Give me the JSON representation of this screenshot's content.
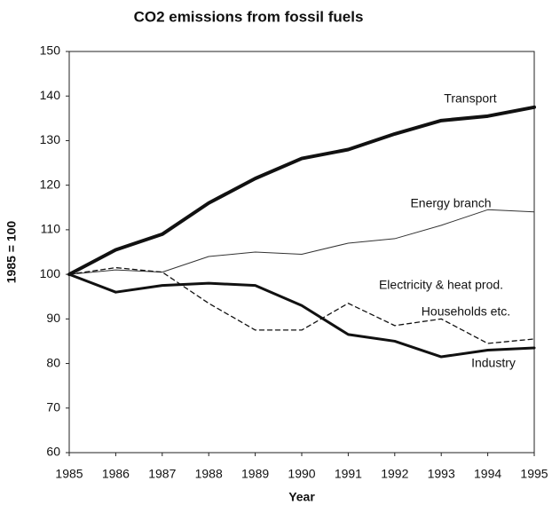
{
  "chart_data": {
    "type": "line",
    "title": "CO2 emissions from fossil fuels",
    "x_label": "Year",
    "y_label": "1985 = 100",
    "categories": [
      "1985",
      "1986",
      "1987",
      "1988",
      "1989",
      "1990",
      "1991",
      "1992",
      "1993",
      "1994",
      "1995"
    ],
    "series": [
      {
        "name": "Transport",
        "color": "#111111",
        "line_width": 4,
        "dashed": false,
        "values": [
          100,
          105.5,
          109,
          116,
          121.5,
          126,
          128,
          131.5,
          134.5,
          135.5,
          137.5
        ]
      },
      {
        "name": "Energy branch",
        "color": "#333333",
        "line_width": 1,
        "dashed": false,
        "values": [
          100,
          101,
          100.5,
          104,
          105,
          104.5,
          107,
          108,
          111,
          114.5,
          114
        ]
      },
      {
        "name": "Households etc.",
        "color": "#111111",
        "line_width": 1.3,
        "dashed": true,
        "values": [
          100,
          101.5,
          100.5,
          93.5,
          87.5,
          87.5,
          93.5,
          88.5,
          90,
          84.5,
          85.5
        ]
      },
      {
        "name": "Industry",
        "color": "#111111",
        "line_width": 3,
        "dashed": false,
        "values": [
          100,
          96,
          97.5,
          98,
          97.5,
          93,
          86.5,
          85,
          81.5,
          83,
          83.5
        ]
      }
    ],
    "annotations": [
      "Electricity & heat prod."
    ],
    "ylim": [
      60,
      150
    ],
    "yticks": [
      60,
      70,
      80,
      90,
      100,
      110,
      120,
      130,
      140,
      150
    ],
    "grid": false
  }
}
